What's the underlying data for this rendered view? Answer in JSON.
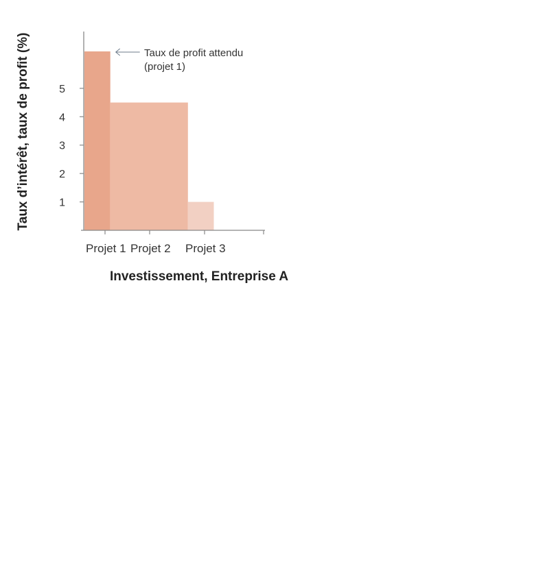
{
  "chart_data": {
    "type": "bar",
    "xlabel": "Investissement, Entreprise A",
    "ylabel": "Taux d’intérêt, taux de profit (%)",
    "categories": [
      "Projet 1",
      "Projet 2",
      "Projet 3"
    ],
    "values": [
      6.3,
      4.5,
      1.0
    ],
    "relative_widths": [
      1,
      3,
      1
    ],
    "colors": [
      "#e8a68b",
      "#eebaa4",
      "#f2d0c3"
    ],
    "y_ticks": [
      1,
      2,
      3,
      4,
      5
    ],
    "ylim": [
      0,
      7
    ],
    "grid": false,
    "annotation": {
      "target_category": "Projet 1",
      "lines": [
        "Taux de profit attendu",
        "(projet 1)"
      ]
    }
  }
}
